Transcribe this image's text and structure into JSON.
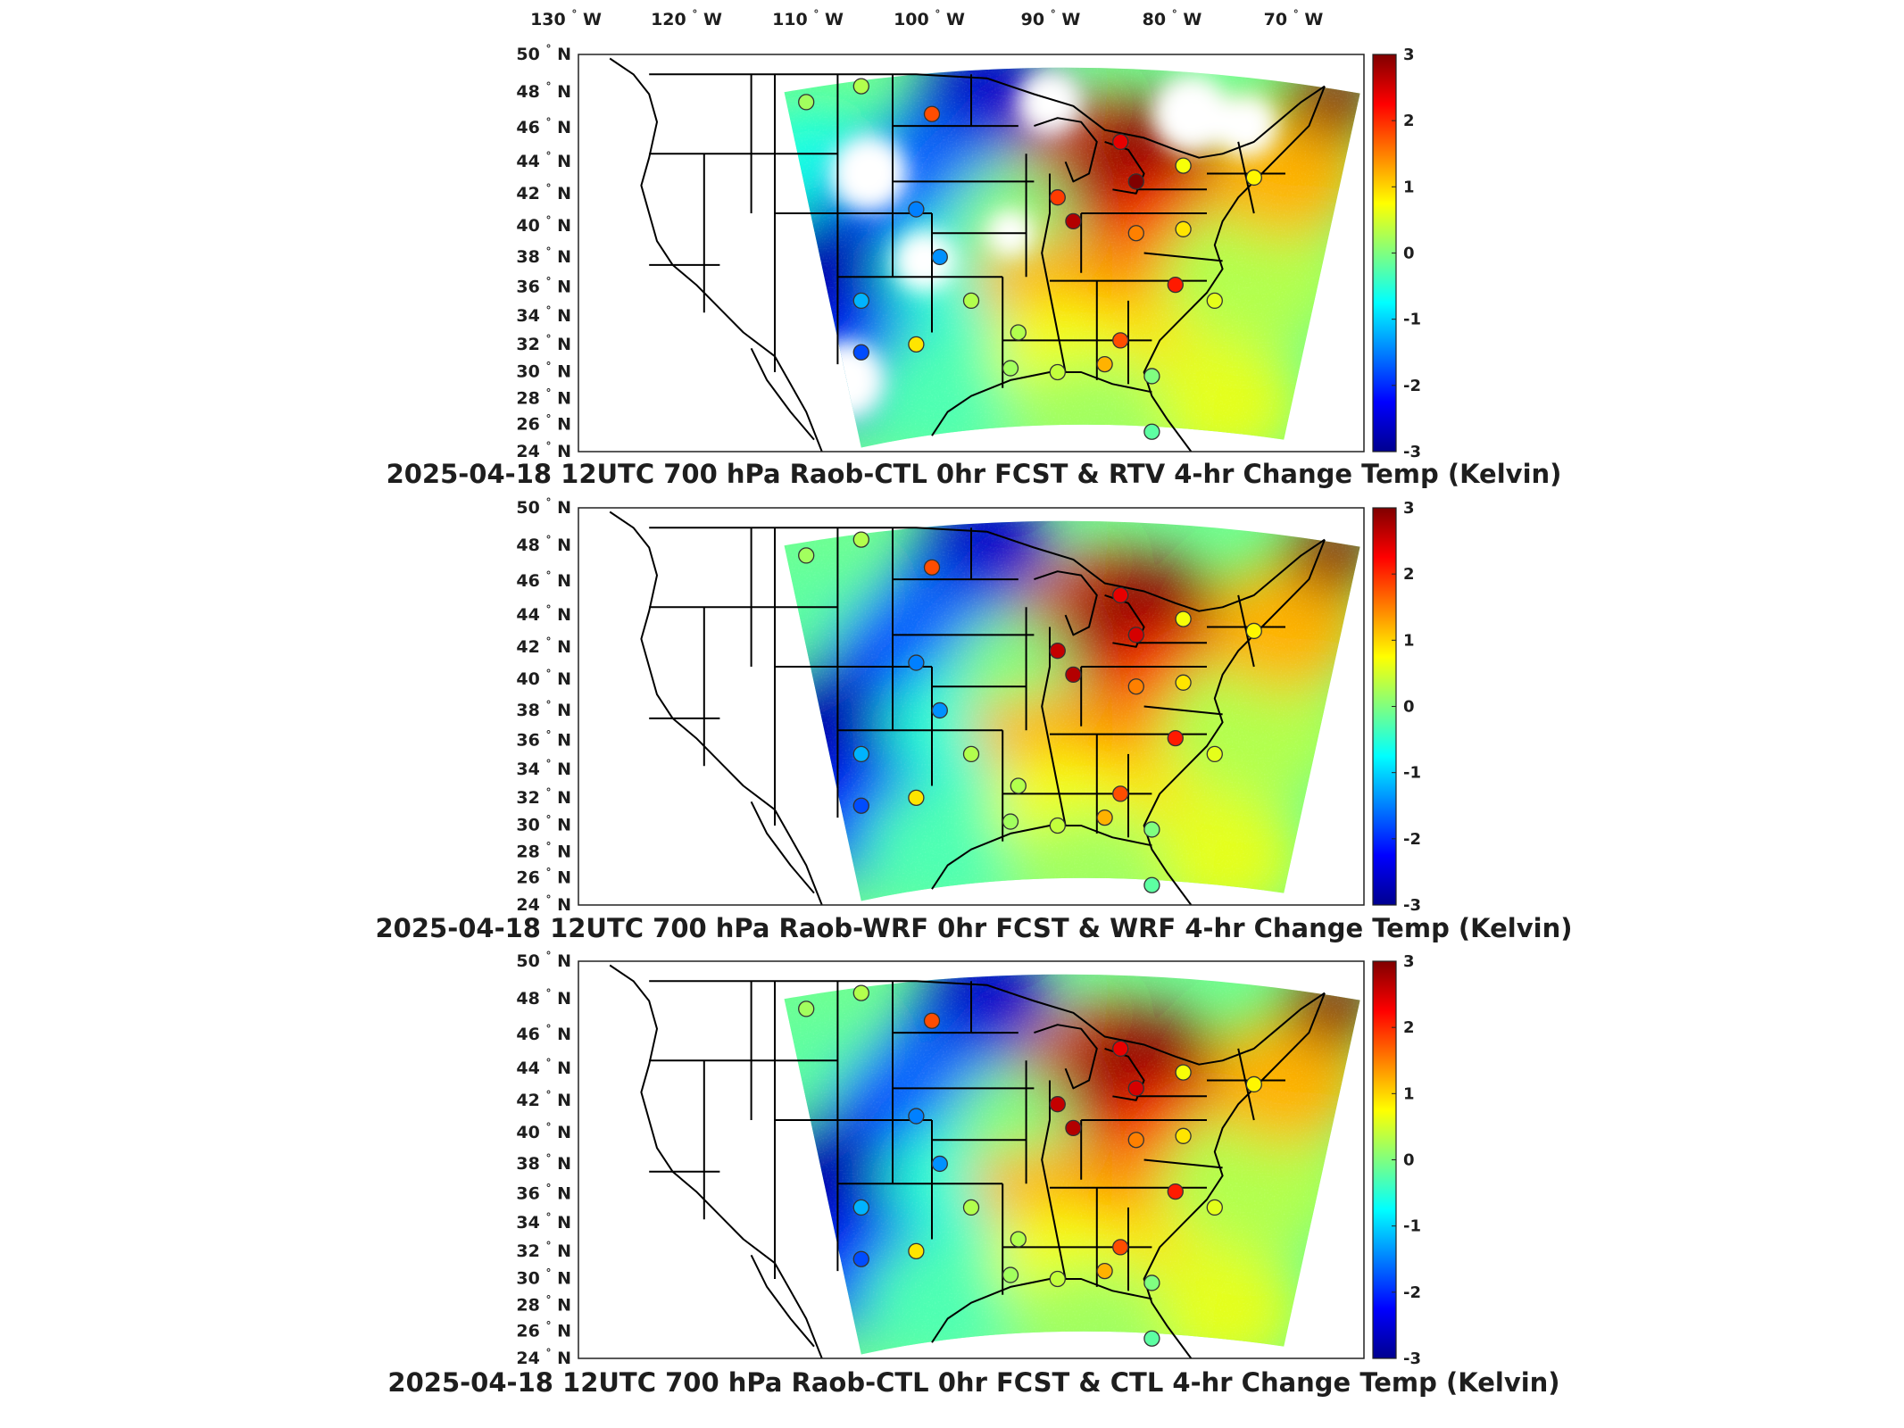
{
  "figure": {
    "lon_ticks": [
      {
        "deg": "130",
        "hemi": "W"
      },
      {
        "deg": "120",
        "hemi": "W"
      },
      {
        "deg": "110",
        "hemi": "W"
      },
      {
        "deg": "100",
        "hemi": "W"
      },
      {
        "deg": "90",
        "hemi": "W"
      },
      {
        "deg": "80",
        "hemi": "W"
      },
      {
        "deg": "70",
        "hemi": "W"
      }
    ],
    "lat_ticks": [
      {
        "deg": "50",
        "hemi": "N"
      },
      {
        "deg": "48",
        "hemi": "N"
      },
      {
        "deg": "46",
        "hemi": "N"
      },
      {
        "deg": "44",
        "hemi": "N"
      },
      {
        "deg": "42",
        "hemi": "N"
      },
      {
        "deg": "40",
        "hemi": "N"
      },
      {
        "deg": "38",
        "hemi": "N"
      },
      {
        "deg": "36",
        "hemi": "N"
      },
      {
        "deg": "34",
        "hemi": "N"
      },
      {
        "deg": "32",
        "hemi": "N"
      },
      {
        "deg": "30",
        "hemi": "N"
      },
      {
        "deg": "28",
        "hemi": "N"
      },
      {
        "deg": "26",
        "hemi": "N"
      },
      {
        "deg": "24",
        "hemi": "N"
      }
    ],
    "colorbar": {
      "colormap": "jet",
      "min": -3,
      "max": 3,
      "ticks": [
        "3",
        "2",
        "1",
        "0",
        "-1",
        "-2",
        "-3"
      ]
    },
    "panels": [
      {
        "title": "2025-04-18 12UTC 700 hPa Raob-CTL 0hr FCST & RTV 4-hr Change Temp (Kelvin)",
        "field": "RTV 4-hr change, sparse retrieval coverage",
        "raob_values": [
          0.2,
          0.3,
          1.8,
          -1.5,
          1.9,
          2.7,
          2.4,
          3.0,
          1.5,
          0.7,
          0.8,
          -1.4,
          -1.2,
          2.1,
          0.3,
          -1.8,
          0.3,
          0.9,
          0.2,
          0.4,
          1.2,
          1.8,
          0.0,
          0.9,
          0.6,
          -0.2
        ]
      },
      {
        "title": "2025-04-18 12UTC 700 hPa Raob-WRF 0hr FCST & WRF 4-hr Change Temp (Kelvin)",
        "field": "WRF 4-hr change, full domain",
        "raob_values": [
          0.2,
          0.3,
          1.8,
          -1.5,
          2.6,
          2.7,
          2.4,
          2.5,
          1.5,
          0.7,
          0.8,
          -1.4,
          -1.2,
          2.1,
          0.3,
          -1.8,
          0.3,
          0.9,
          0.2,
          0.4,
          1.2,
          1.8,
          0.0,
          0.9,
          0.6,
          -0.2
        ]
      },
      {
        "title": "2025-04-18 12UTC 700 hPa Raob-CTL 0hr FCST & CTL 4-hr Change Temp (Kelvin)",
        "field": "CTL 4-hr change, full domain",
        "raob_values": [
          0.2,
          0.3,
          1.8,
          -1.5,
          2.6,
          2.7,
          2.4,
          2.5,
          1.5,
          0.7,
          0.8,
          -1.4,
          -1.2,
          2.1,
          0.3,
          -1.8,
          0.3,
          0.9,
          0.2,
          0.4,
          1.2,
          1.8,
          0.0,
          0.9,
          0.6,
          -0.2
        ]
      }
    ]
  }
}
